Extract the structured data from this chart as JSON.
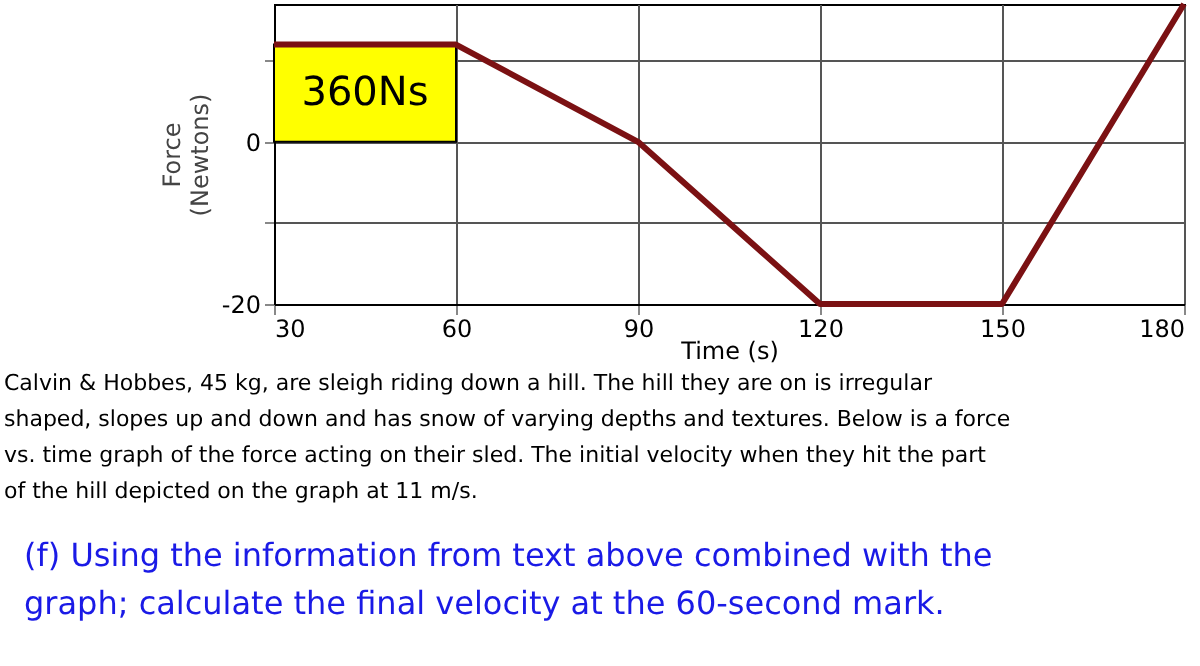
{
  "chart_data": {
    "type": "line",
    "xlabel": "Time (s)",
    "ylabel": "Force\n(Newtons)",
    "x": [
      30,
      60,
      90,
      120,
      150,
      180
    ],
    "series": [
      {
        "color": "#7b1113",
        "values": [
          12,
          12,
          0,
          -20,
          -20,
          17
        ]
      }
    ],
    "xlim": [
      30,
      180
    ],
    "xticks": [
      30,
      60,
      90,
      120,
      150,
      180
    ],
    "ylim": [
      -20,
      17
    ],
    "yticks": [
      -20,
      {
        "value": -10,
        "label": null
      },
      0,
      {
        "value": 10,
        "label": null
      }
    ],
    "grid": true,
    "marker": "none",
    "line_style": "solid",
    "annotations": [
      "360Ns",
      "Calvin & Hobbes, 45 kg, are sleigh riding down a hill. The hill they are on is irregular\nshaped, slopes up and down and has snow of varying depths and textures. Below is a force\nvs. time graph of the force acting on their sled. The initial velocity when they hit the part\nof the hill depicted on the graph at 11 m/s.",
      "(f) Using the information from text above combined with the\ngraph; calculate the final velocity at the 60-second mark."
    ]
  }
}
